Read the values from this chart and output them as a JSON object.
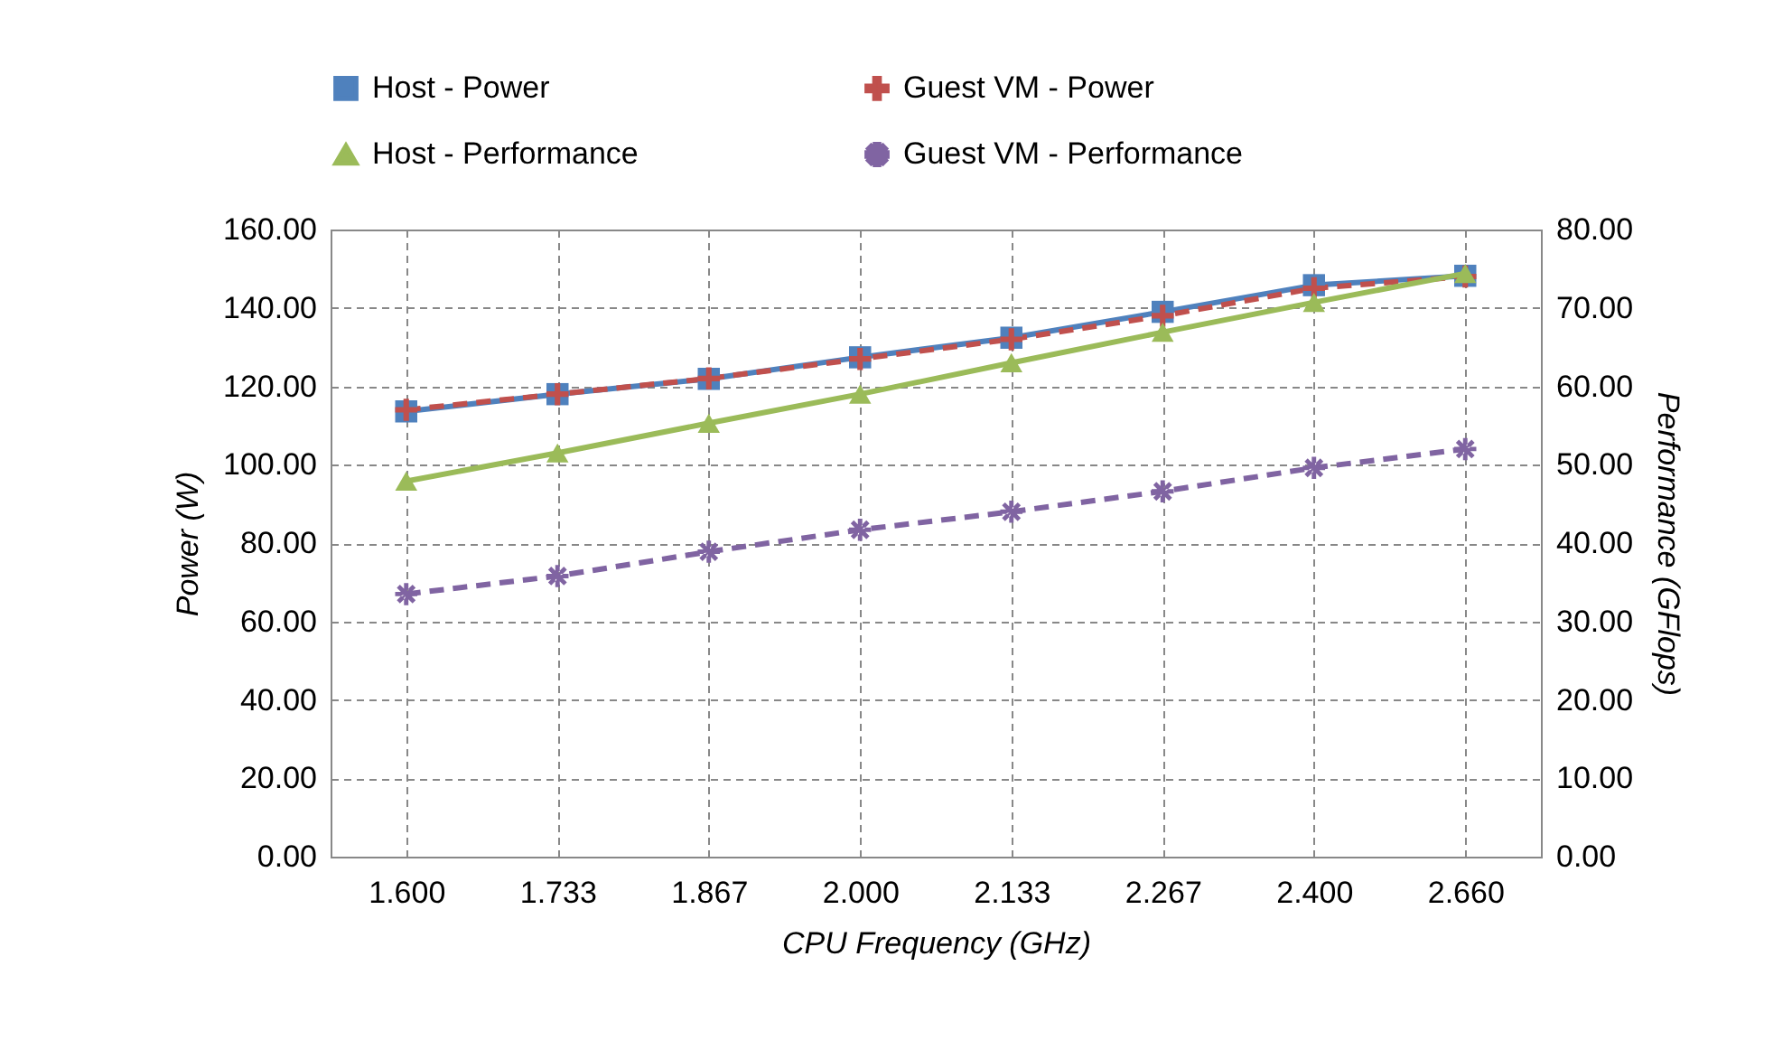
{
  "chart_data": {
    "type": "line",
    "xlabel": "CPU Frequency  (GHz)",
    "ylabel": "Power  (W)",
    "y2label": "Performance  (GFlops)",
    "categories": [
      "1.600",
      "1.733",
      "1.867",
      "2.000",
      "2.133",
      "2.267",
      "2.400",
      "2.660"
    ],
    "series": [
      {
        "name": "Host - Power",
        "color": "#4f81bd",
        "marker": "square",
        "line_style": "solid",
        "values": [
          113.6,
          118,
          121.9,
          127.4,
          132.4,
          139,
          145.8,
          148.2
        ]
      },
      {
        "name": "Guest VM - Power",
        "color": "#c0504d",
        "marker": "cross",
        "line_style": "dashed",
        "values": [
          114,
          118,
          122,
          127,
          132,
          138,
          145,
          148
        ]
      },
      {
        "name": "Host - Performance",
        "color": "#9bbb59",
        "marker": "triangle",
        "line_style": "solid",
        "axis": "y2",
        "values": [
          47.9,
          51.5,
          55.3,
          59,
          63,
          66.9,
          70.7,
          74.4
        ]
      },
      {
        "name": "Guest VM - Performance",
        "color": "#8064a2",
        "marker": "star",
        "line_style": "dashed",
        "axis": "y2",
        "values": [
          33.5,
          35.8,
          38.9,
          41.7,
          44,
          46.6,
          49.6,
          52
        ]
      }
    ],
    "ylim": [
      0,
      160
    ],
    "yticks": [
      {
        "value": 0,
        "label": "0.00"
      },
      {
        "value": 20,
        "label": "20.00"
      },
      {
        "value": 40,
        "label": "40.00"
      },
      {
        "value": 60,
        "label": "60.00"
      },
      {
        "value": 80,
        "label": "80.00"
      },
      {
        "value": 100,
        "label": "100.00"
      },
      {
        "value": 120,
        "label": "120.00"
      },
      {
        "value": 140,
        "label": "140.00"
      },
      {
        "value": 160,
        "label": "160.00"
      }
    ],
    "y2lim": [
      0,
      80
    ],
    "y2ticks": [
      {
        "value": 0,
        "label": "0.00"
      },
      {
        "value": 10,
        "label": "10.00"
      },
      {
        "value": 20,
        "label": "20.00"
      },
      {
        "value": 30,
        "label": "30.00"
      },
      {
        "value": 40,
        "label": "40.00"
      },
      {
        "value": 50,
        "label": "50.00"
      },
      {
        "value": 60,
        "label": "60.00"
      },
      {
        "value": 70,
        "label": "70.00"
      },
      {
        "value": 80,
        "label": "80.00"
      }
    ],
    "grid": true,
    "legend": "top"
  }
}
